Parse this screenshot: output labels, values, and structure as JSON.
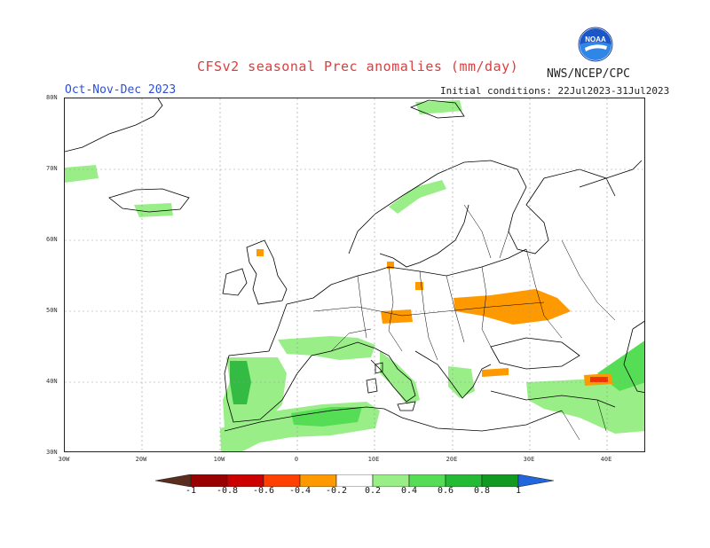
{
  "header": {
    "title": "CFSv2 seasonal Prec anomalies (mm/day)",
    "org": "NWS/NCEP/CPC",
    "period": "Oct-Nov-Dec 2023",
    "initial_conditions": "Initial conditions: 22Jul2023-31Jul2023",
    "logo_icon": "noaa-logo-icon",
    "logo_text": "NOAA"
  },
  "map": {
    "lat_labels": [
      "80N",
      "70N",
      "60N",
      "50N",
      "40N",
      "30N"
    ],
    "lon_labels": [
      "30W",
      "20W",
      "10W",
      "0",
      "10E",
      "20E",
      "30E",
      "40E"
    ],
    "lon_range": [
      -30,
      45
    ],
    "lat_range": [
      30,
      80
    ],
    "grid": true
  },
  "legend": {
    "labels": [
      "-1",
      "-0.8",
      "-0.6",
      "-0.4",
      "-0.2",
      "0.2",
      "0.4",
      "0.6",
      "0.8",
      "1"
    ],
    "colors": [
      "#5a2d1c",
      "#990000",
      "#cc0000",
      "#ff4000",
      "#ff9900",
      "#ffffff",
      "#99ee88",
      "#55dd55",
      "#22bb33",
      "#119922",
      "#2266dd"
    ]
  },
  "colors": {
    "title": "#d94040",
    "period": "#2d4fd8",
    "dry": "#ff9900",
    "wet_light": "#99ee88",
    "wet_mid": "#55dd55",
    "wet_dark": "#22aa33"
  }
}
